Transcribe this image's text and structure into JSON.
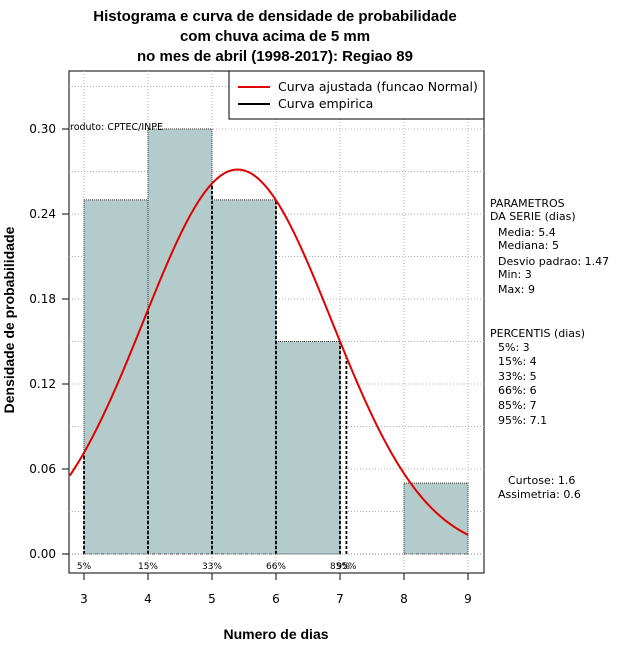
{
  "chart_data": {
    "type": "bar",
    "title_lines": [
      "Histograma e curva de densidade de probabilidade",
      "com chuva acima de 5 mm",
      "no mes de abril (1998-2017): Regiao 89"
    ],
    "xlabel": "Numero de dias",
    "ylabel": "Densidade de probabilidade",
    "xlim": [
      3,
      9
    ],
    "ylim": [
      0,
      0.33
    ],
    "x_ticks": [
      3,
      4,
      5,
      6,
      7,
      8,
      9
    ],
    "y_ticks": [
      "0.00",
      "0.06",
      "0.12",
      "0.18",
      "0.24",
      "0.30"
    ],
    "y_tick_values": [
      0,
      0.06,
      0.12,
      0.18,
      0.24,
      0.3
    ],
    "grid": true,
    "bins": [
      {
        "from": 3,
        "to": 4,
        "density": 0.25
      },
      {
        "from": 4,
        "to": 5,
        "density": 0.3
      },
      {
        "from": 5,
        "to": 6,
        "density": 0.25
      },
      {
        "from": 6,
        "to": 7,
        "density": 0.15
      },
      {
        "from": 7,
        "to": 8,
        "density": 0.0
      },
      {
        "from": 8,
        "to": 9,
        "density": 0.05
      }
    ],
    "fitted_curve": {
      "name": "Curva ajustada (funcao Normal)",
      "distribution": "normal",
      "mean": 5.4,
      "sd": 1.47,
      "color": "#e00000"
    },
    "empirical_curve": {
      "name": "Curva empirica",
      "color": "#000000"
    },
    "legend_position": "top-right",
    "percentile_markers": [
      {
        "label": "5%",
        "x": 3
      },
      {
        "label": "15%",
        "x": 4
      },
      {
        "label": "33%",
        "x": 5
      },
      {
        "label": "66%",
        "x": 6
      },
      {
        "label": "85%",
        "x": 7
      },
      {
        "label": "95%",
        "x": 7.1
      }
    ],
    "bar_color": "#b4cbcb",
    "credit": "roduto: CPTEC/INPE"
  },
  "side_panel": {
    "params_title": [
      "PARAMETROS",
      "DA SERIE (dias)"
    ],
    "params": [
      "Media: 5.4",
      "Mediana: 5",
      "Desvio padrao: 1.47",
      "Min: 3",
      "Max: 9"
    ],
    "percentis_title": "PERCENTIS (dias)",
    "percentis": [
      "5%: 3",
      "15%: 4",
      "33%: 5",
      "66%: 6",
      "85%: 7",
      "95%: 7.1"
    ],
    "shape": [
      "Curtose: 1.6",
      "Assimetria: 0.6"
    ]
  }
}
